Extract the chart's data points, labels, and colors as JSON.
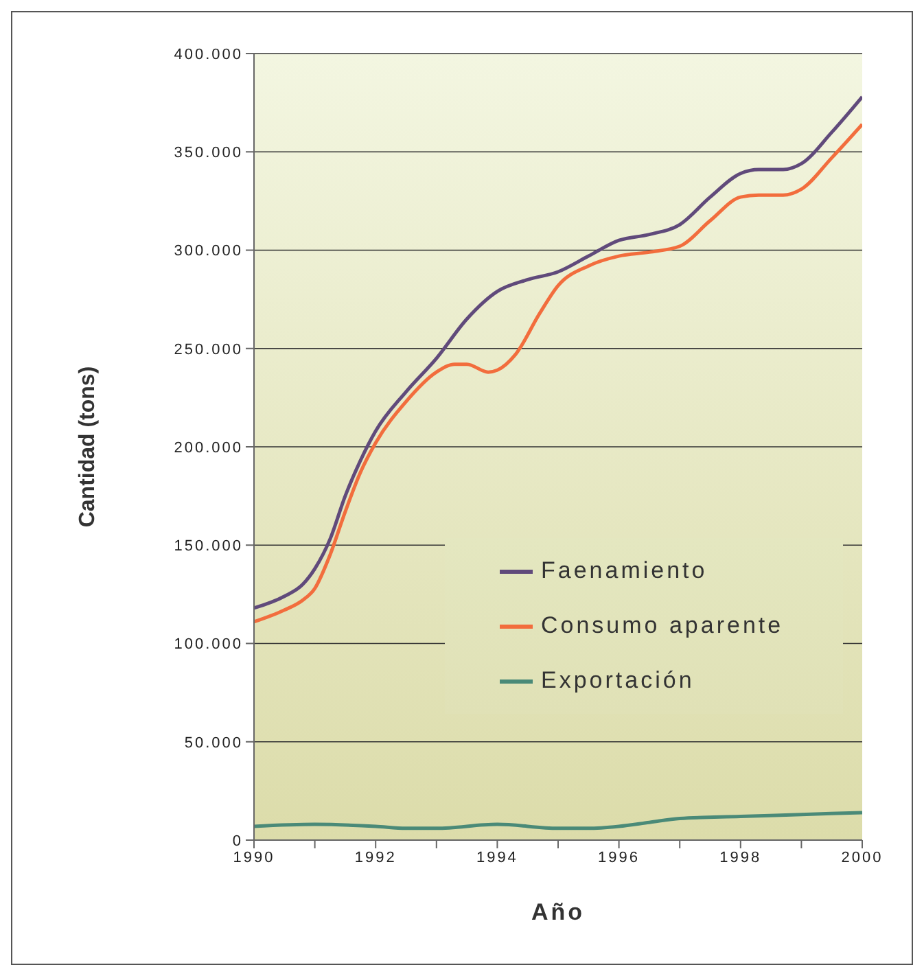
{
  "chart_data": {
    "type": "line",
    "xlabel": "Año",
    "ylabel": "Cantidad (tons)",
    "xlim": [
      1990,
      2000
    ],
    "xticks": [
      1990,
      {
        "value": 1991,
        "label": null
      },
      1992,
      {
        "value": 1993,
        "label": null
      },
      1994,
      {
        "value": 1995,
        "label": null
      },
      1996,
      {
        "value": 1997,
        "label": null
      },
      1998,
      {
        "value": 1999,
        "label": null
      },
      2000
    ],
    "ylim": [
      0,
      400000
    ],
    "yticks": [
      {
        "value": 0,
        "label": "0"
      },
      {
        "value": 50000,
        "label": "50.000"
      },
      {
        "value": 100000,
        "label": "100.000"
      },
      {
        "value": 150000,
        "label": "150.000"
      },
      {
        "value": 200000,
        "label": "200.000"
      },
      {
        "value": 250000,
        "label": "250.000"
      },
      {
        "value": 300000,
        "label": "300.000"
      },
      {
        "value": 350000,
        "label": "350.000"
      },
      {
        "value": 400000,
        "label": "400.000"
      }
    ],
    "grid": "y",
    "legend": "right",
    "marker": "none",
    "line_style": "solid",
    "series": [
      {
        "name": "Faenamiento",
        "color": "#604a7b",
        "x": [
          1990,
          1990.5,
          1990.8,
          1991,
          1991.25,
          1991.5,
          1991.75,
          1992,
          1992.5,
          1993,
          1993.5,
          1994,
          1994.5,
          1995,
          1995.5,
          1996,
          1996.5,
          1997,
          1997.5,
          1998,
          1998.3,
          1998.7,
          1999,
          1999.5,
          2000
        ],
        "values": [
          118000,
          124000,
          130000,
          138000,
          153000,
          175000,
          193000,
          208000,
          228000,
          245000,
          265000,
          279000,
          285000,
          289000,
          297000,
          305000,
          308000,
          313000,
          327000,
          339000,
          341000,
          341000,
          344000,
          360000,
          378000
        ]
      },
      {
        "name": "Consumo aparente",
        "color": "#f26d3d",
        "x": [
          1990,
          1990.5,
          1990.8,
          1991,
          1991.25,
          1991.5,
          1991.75,
          1992,
          1992.5,
          1993,
          1993.3,
          1993.5,
          1993.85,
          1994,
          1994.3,
          1994.7,
          1995,
          1995.5,
          1996,
          1996.5,
          1997,
          1997.5,
          1998,
          1998.3,
          1998.7,
          1999,
          1999.5,
          2000
        ],
        "values": [
          111000,
          117000,
          122000,
          128000,
          145000,
          167000,
          187000,
          202000,
          223000,
          238000,
          242000,
          242000,
          238000,
          239000,
          247000,
          268000,
          282000,
          292000,
          297000,
          299000,
          302000,
          315000,
          327000,
          328000,
          328000,
          331000,
          347000,
          364000
        ]
      },
      {
        "name": "Exportación",
        "color": "#4a8a78",
        "x": [
          1990,
          1991,
          1992,
          1992.5,
          1993,
          1994,
          1995,
          1995.5,
          1996,
          1996.5,
          1997,
          1998,
          1999,
          2000
        ],
        "values": [
          7000,
          8000,
          7000,
          6000,
          6000,
          8000,
          6000,
          6000,
          7000,
          9000,
          11000,
          12000,
          13000,
          14000
        ]
      }
    ]
  }
}
